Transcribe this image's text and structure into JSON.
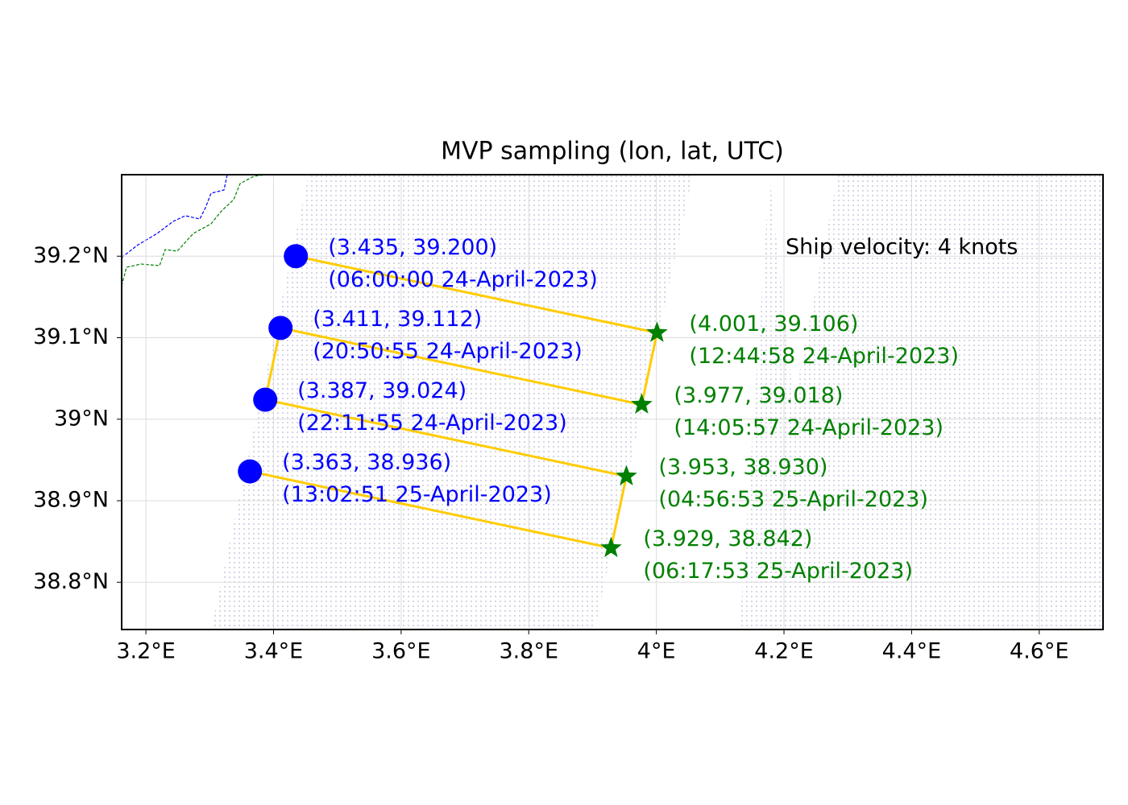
{
  "chart_data": {
    "type": "map",
    "title": "MVP sampling (lon, lat, UTC)",
    "annotation": "Ship velocity: 4 knots",
    "xlim": [
      3.162,
      4.7
    ],
    "ylim": [
      38.742,
      39.3
    ],
    "xticks": [
      {
        "value": 3.2,
        "label": "3.2°E"
      },
      {
        "value": 3.4,
        "label": "3.4°E"
      },
      {
        "value": 3.6,
        "label": "3.6°E"
      },
      {
        "value": 3.8,
        "label": "3.8°E"
      },
      {
        "value": 4.0,
        "label": "4°E"
      },
      {
        "value": 4.2,
        "label": "4.2°E"
      },
      {
        "value": 4.4,
        "label": "4.4°E"
      },
      {
        "value": 4.6,
        "label": "4.6°E"
      }
    ],
    "yticks": [
      {
        "value": 38.8,
        "label": "38.8°N"
      },
      {
        "value": 38.9,
        "label": "38.9°N"
      },
      {
        "value": 39.0,
        "label": "39°N"
      },
      {
        "value": 39.1,
        "label": "39.1°N"
      },
      {
        "value": 39.2,
        "label": "39.2°N"
      }
    ],
    "grid": true,
    "track": {
      "color": "#ffcc00",
      "x": [
        3.435,
        4.001,
        3.977,
        3.411,
        3.387,
        3.953,
        3.929,
        3.363
      ],
      "y": [
        39.2,
        39.106,
        39.018,
        39.112,
        39.024,
        38.93,
        38.842,
        38.936
      ]
    },
    "series": [
      {
        "marker": "circle",
        "color": "#0000ff",
        "lon": [
          3.435,
          3.411,
          3.387,
          3.363
        ],
        "lat": [
          39.2,
          39.112,
          39.024,
          38.936
        ],
        "coord_labels": [
          "(3.435, 39.200)",
          "(3.411, 39.112)",
          "(3.387, 39.024)",
          "(3.363, 38.936)"
        ],
        "time_labels": [
          "(06:00:00 24-April-2023)",
          "(20:50:55 24-April-2023)",
          "(22:11:55 24-April-2023)",
          "(13:02:51 25-April-2023)"
        ]
      },
      {
        "marker": "star",
        "color": "#008000",
        "lon": [
          4.001,
          3.977,
          3.953,
          3.929
        ],
        "lat": [
          39.106,
          39.018,
          38.93,
          38.842
        ],
        "coord_labels": [
          "(4.001, 39.106)",
          "(3.977, 39.018)",
          "(3.953, 38.930)",
          "(3.929, 38.842)"
        ],
        "time_labels": [
          "(12:44:58 24-April-2023)",
          "(14:05:57 24-April-2023)",
          "(04:56:53 25-April-2023)",
          "(06:17:53 25-April-2023)"
        ]
      }
    ]
  }
}
